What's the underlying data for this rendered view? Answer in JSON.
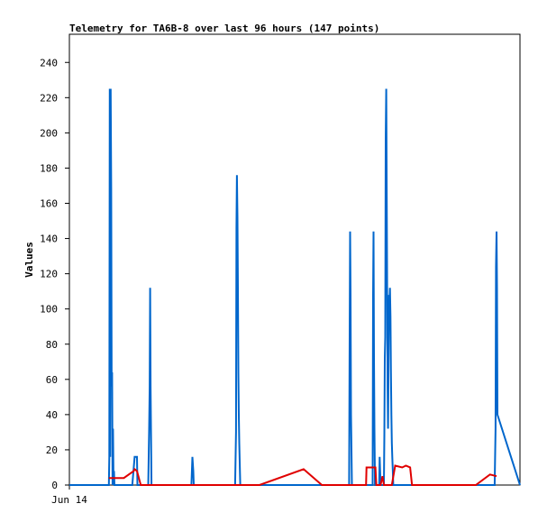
{
  "chart_data": {
    "type": "line",
    "title": "Telemetry for TA6B-8 over last 96 hours (147 points)",
    "ylabel": "Values",
    "xlabel": "",
    "ylim": [
      0,
      256
    ],
    "yticks": [
      0,
      20,
      40,
      60,
      80,
      100,
      120,
      140,
      160,
      180,
      200,
      220,
      240
    ],
    "xlim": [
      0,
      96
    ],
    "x_tick_labels": [
      {
        "x": 0,
        "label": "Jun 14"
      }
    ],
    "grid": false,
    "series": [
      {
        "color": "#0066cc",
        "x": [
          0,
          8.4,
          8.5,
          8.6,
          8.7,
          8.8,
          8.9,
          9.0,
          9.1,
          9.2,
          9.3,
          9.4,
          9.5,
          9.6,
          9.7,
          13.4,
          13.9,
          14.4,
          14.5,
          16.8,
          16.9,
          17.0,
          17.1,
          17.2,
          17.3,
          17.5,
          26.0,
          26.2,
          26.4,
          26.5,
          35.3,
          35.5,
          35.6,
          35.7,
          35.8,
          35.9,
          36.0,
          36.1,
          36.2,
          36.4,
          59.6,
          59.7,
          59.8,
          59.9,
          60.0,
          60.2,
          64.6,
          64.7,
          64.8,
          64.9,
          65.0,
          65.1,
          65.3,
          66.0,
          66.1,
          66.2,
          66.3,
          66.5,
          67.0,
          67.1,
          67.2,
          67.3,
          67.4,
          67.5,
          67.6,
          67.7,
          67.8,
          67.9,
          68.0,
          68.1,
          68.2,
          68.3,
          68.4,
          68.5,
          68.6,
          68.7,
          68.8,
          68.9,
          69.0,
          69.2,
          90.6,
          90.8,
          90.9,
          91.0,
          91.1,
          91.2,
          96
        ],
        "y": [
          0,
          0,
          16,
          225,
          16,
          225,
          168,
          56,
          64,
          0,
          32,
          0,
          8,
          0,
          0,
          0,
          16,
          16,
          0,
          0,
          16,
          32,
          56,
          112,
          56,
          0,
          0,
          16,
          8,
          0,
          0,
          30,
          146,
          176,
          152,
          112,
          64,
          40,
          24,
          0,
          0,
          72,
          144,
          108,
          40,
          0,
          0,
          108,
          144,
          72,
          32,
          0,
          0,
          0,
          16,
          8,
          0,
          0,
          0,
          28,
          72,
          84,
          196,
          225,
          168,
          112,
          56,
          32,
          72,
          108,
          104,
          112,
          96,
          64,
          40,
          24,
          16,
          8,
          0,
          0,
          0,
          32,
          124,
          144,
          112,
          40,
          0
        ]
      },
      {
        "color": "#e00000",
        "x": [
          8.4,
          9.2,
          11.6,
          13.7,
          13.9,
          14.4,
          15.2,
          40.5,
          49.9,
          53.8,
          63.2,
          63.3,
          65.2,
          65.4,
          66.3,
          66.7,
          67.0,
          68.7,
          69.4,
          70.9,
          71.7,
          72.6,
          73.0,
          75.3,
          86.6,
          89.6,
          91.0
        ],
        "y": [
          4,
          4,
          4,
          8,
          9,
          8,
          0,
          0,
          9,
          0,
          0,
          10,
          10,
          0,
          0,
          5,
          0,
          0,
          11,
          10,
          11,
          10,
          0,
          0,
          0,
          6,
          5
        ]
      }
    ]
  }
}
